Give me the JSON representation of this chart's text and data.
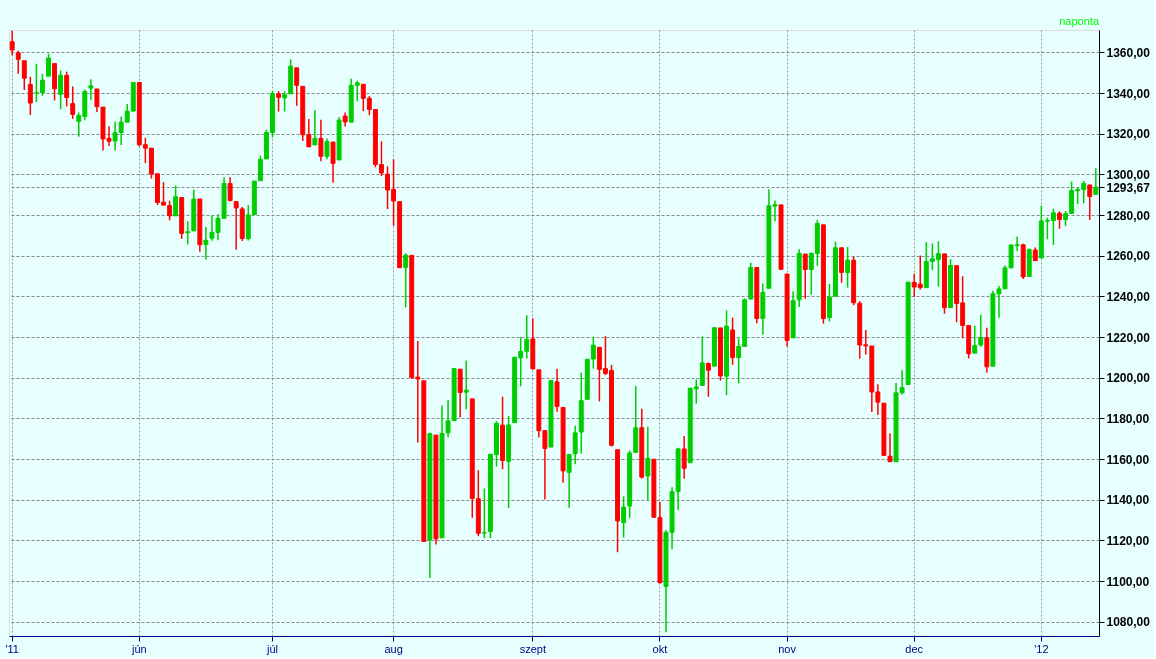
{
  "chart_data": {
    "type": "candlestick",
    "categories": [
      "'11",
      null,
      null,
      null,
      null,
      null,
      null,
      null,
      null,
      null,
      null,
      null,
      null,
      null,
      null,
      null,
      null,
      null,
      null,
      null,
      null,
      "jún",
      null,
      null,
      null,
      null,
      null,
      null,
      null,
      null,
      null,
      null,
      null,
      null,
      null,
      null,
      null,
      null,
      null,
      null,
      null,
      null,
      null,
      "júl",
      null,
      null,
      null,
      null,
      null,
      null,
      null,
      null,
      null,
      null,
      null,
      null,
      null,
      null,
      null,
      null,
      null,
      null,
      null,
      "aug",
      null,
      null,
      null,
      null,
      null,
      null,
      null,
      null,
      null,
      null,
      null,
      null,
      null,
      null,
      null,
      null,
      null,
      null,
      null,
      null,
      null,
      null,
      "szept",
      null,
      null,
      null,
      null,
      null,
      null,
      null,
      null,
      null,
      null,
      null,
      null,
      null,
      null,
      null,
      null,
      null,
      null,
      null,
      null,
      "okt",
      null,
      null,
      null,
      null,
      null,
      null,
      null,
      null,
      null,
      null,
      null,
      null,
      null,
      null,
      null,
      null,
      null,
      null,
      null,
      null,
      "nov",
      null,
      null,
      null,
      null,
      null,
      null,
      null,
      null,
      null,
      null,
      null,
      null,
      null,
      null,
      null,
      null,
      null,
      null,
      null,
      null,
      "dec",
      null,
      null,
      null,
      null,
      null,
      null,
      null,
      null,
      null,
      null,
      null,
      null,
      null,
      null,
      null,
      null,
      null,
      null,
      null,
      null,
      "'12",
      null,
      null,
      null,
      null,
      null,
      null,
      null,
      null,
      null
    ],
    "ohlc": [
      [
        1365.2,
        1370.6,
        1358.6,
        1361.2
      ],
      [
        1359.8,
        1360.8,
        1349.5,
        1356.6
      ],
      [
        1355.9,
        1355.9,
        1341.5,
        1347.3
      ],
      [
        1344.2,
        1348,
        1329.2,
        1335.1
      ],
      [
        1340.2,
        1354.4,
        1335.6,
        1340.2
      ],
      [
        1340.2,
        1349.4,
        1338.6,
        1346.3
      ],
      [
        1348.3,
        1359.4,
        1348.3,
        1357.2
      ],
      [
        1354.5,
        1354.5,
        1336.4,
        1342.1
      ],
      [
        1339.4,
        1351.1,
        1332.0,
        1348.7
      ],
      [
        1348.7,
        1350.5,
        1333.4,
        1337.8
      ],
      [
        1334.8,
        1343.3,
        1327.3,
        1329.5
      ],
      [
        1326.1,
        1330.4,
        1318.5,
        1329.0
      ],
      [
        1328.5,
        1341.8,
        1326.6,
        1340.7
      ],
      [
        1342.4,
        1346.8,
        1336.4,
        1343.6
      ],
      [
        1342.0,
        1342.0,
        1330.7,
        1333.3
      ],
      [
        1333.1,
        1333.1,
        1311.8,
        1317.4
      ],
      [
        1317.7,
        1323.7,
        1313.9,
        1316.3
      ],
      [
        1316.4,
        1325.9,
        1311.8,
        1320.5
      ],
      [
        1320.6,
        1328.5,
        1314.4,
        1325.7
      ],
      [
        1325.7,
        1334.6,
        1325.7,
        1331.1
      ],
      [
        1331.1,
        1345.2,
        1331.1,
        1345.2
      ],
      [
        1345.2,
        1345.2,
        1313.7,
        1314.6
      ],
      [
        1314.6,
        1318.0,
        1305.6,
        1312.9
      ],
      [
        1312.9,
        1312.9,
        1297.9,
        1300.2
      ],
      [
        1300.3,
        1300.3,
        1284.9,
        1286.2
      ],
      [
        1286.3,
        1296.2,
        1284.7,
        1284.9
      ],
      [
        1284.6,
        1287.0,
        1277.4,
        1279.6
      ],
      [
        1279.6,
        1294.5,
        1279.6,
        1289.0
      ],
      [
        1288.6,
        1288.6,
        1268.3,
        1271.0
      ],
      [
        1271.3,
        1277.0,
        1265.6,
        1271.8
      ],
      [
        1272.2,
        1292.5,
        1272.2,
        1287.9
      ],
      [
        1287.9,
        1287.9,
        1261.9,
        1265.4
      ],
      [
        1265.5,
        1274.1,
        1258.1,
        1267.6
      ],
      [
        1268.6,
        1279.8,
        1267.4,
        1271.5
      ],
      [
        1271.5,
        1280.4,
        1267.6,
        1278.4
      ],
      [
        1278.4,
        1298.6,
        1278.4,
        1295.5
      ],
      [
        1295.5,
        1298.6,
        1286.8,
        1287.1
      ],
      [
        1286.6,
        1286.6,
        1262.9,
        1283.5
      ],
      [
        1283.0,
        1283.9,
        1267.2,
        1268.5
      ],
      [
        1268.4,
        1284.9,
        1267.5,
        1280.1
      ],
      [
        1280.2,
        1296.8,
        1280.2,
        1296.7
      ],
      [
        1296.9,
        1309.2,
        1296.9,
        1307.4
      ],
      [
        1307.6,
        1322.0,
        1307.6,
        1320.6
      ],
      [
        1320.6,
        1341.0,
        1318.2,
        1339.7
      ],
      [
        1339.6,
        1340.9,
        1330.9,
        1337.9
      ],
      [
        1337.6,
        1340.9,
        1330.9,
        1339.2
      ],
      [
        1339.6,
        1356.5,
        1339.6,
        1353.2
      ],
      [
        1352.4,
        1352.4,
        1333.7,
        1343.8
      ],
      [
        1343.3,
        1343.3,
        1316.4,
        1319.5
      ],
      [
        1319.6,
        1327.2,
        1313.3,
        1313.6
      ],
      [
        1314.5,
        1331.5,
        1314.5,
        1317.7
      ],
      [
        1317.7,
        1326.9,
        1306.5,
        1308.9
      ],
      [
        1308.9,
        1317.7,
        1307.4,
        1316.1
      ],
      [
        1315.9,
        1315.9,
        1295.9,
        1305.4
      ],
      [
        1307.1,
        1328.1,
        1307.1,
        1326.7
      ],
      [
        1328.7,
        1330.4,
        1323.6,
        1325.8
      ],
      [
        1325.7,
        1347.0,
        1325.7,
        1343.8
      ],
      [
        1343.8,
        1346.1,
        1336.0,
        1345.0
      ],
      [
        1344.3,
        1344.3,
        1331.1,
        1337.4
      ],
      [
        1337.4,
        1338.5,
        1329.1,
        1331.9
      ],
      [
        1331.9,
        1331.9,
        1303.5,
        1304.9
      ],
      [
        1304.8,
        1316.3,
        1299.2,
        1300.7
      ],
      [
        1300.1,
        1304.0,
        1282.9,
        1292.3
      ],
      [
        1292.6,
        1307.4,
        1274.7,
        1286.9
      ],
      [
        1286.6,
        1286.6,
        1254.0,
        1254.1
      ],
      [
        1254.3,
        1261.2,
        1234.6,
        1260.3
      ],
      [
        1260.2,
        1260.2,
        1199.5,
        1200.1
      ],
      [
        1200.3,
        1218.1,
        1168.1,
        1199.4
      ],
      [
        1198.5,
        1198.5,
        1119.3,
        1119.5
      ],
      [
        1120.2,
        1172.9,
        1101.5,
        1172.5
      ],
      [
        1171.8,
        1171.8,
        1118.0,
        1120.8
      ],
      [
        1121.3,
        1186.3,
        1121.3,
        1172.6
      ],
      [
        1172.9,
        1189.0,
        1170.7,
        1178.8
      ],
      [
        1178.9,
        1204.5,
        1178.9,
        1204.5
      ],
      [
        1204.2,
        1204.2,
        1180.5,
        1192.8
      ],
      [
        1192.9,
        1208.5,
        1184.5,
        1193.9
      ],
      [
        1189.6,
        1189.6,
        1131.1,
        1140.7
      ],
      [
        1140.5,
        1154.5,
        1122.1,
        1123.5
      ],
      [
        1123.6,
        1145.5,
        1121.1,
        1123.8
      ],
      [
        1124.4,
        1162.4,
        1121.1,
        1162.4
      ],
      [
        1162.2,
        1178.6,
        1156.3,
        1177.6
      ],
      [
        1176.7,
        1190.7,
        1155.0,
        1159.3
      ],
      [
        1158.9,
        1181.2,
        1135.9,
        1176.8
      ],
      [
        1177.9,
        1210.1,
        1177.9,
        1210.1
      ],
      [
        1209.8,
        1220.1,
        1195.8,
        1212.9
      ],
      [
        1213.0,
        1230.7,
        1209.4,
        1218.9
      ],
      [
        1219.1,
        1229.3,
        1203.9,
        1204.4
      ],
      [
        1203.9,
        1203.9,
        1170.6,
        1174.0
      ],
      [
        1174.0,
        1174.0,
        1140.1,
        1165.2
      ],
      [
        1165.9,
        1198.6,
        1165.9,
        1198.6
      ],
      [
        1198.0,
        1204.4,
        1183.3,
        1185.9
      ],
      [
        1185.4,
        1185.4,
        1148.4,
        1154.2
      ],
      [
        1153.5,
        1162.5,
        1136.1,
        1162.3
      ],
      [
        1162.6,
        1176.4,
        1157.4,
        1172.9
      ],
      [
        1173.3,
        1202.4,
        1162.7,
        1188.7
      ],
      [
        1189.4,
        1209.1,
        1189.4,
        1209.1
      ],
      [
        1209.2,
        1220.1,
        1204.5,
        1216.0
      ],
      [
        1215.0,
        1215.0,
        1188.4,
        1204.1
      ],
      [
        1204.5,
        1220.4,
        1201.3,
        1202.1
      ],
      [
        1203.6,
        1206.3,
        1166.2,
        1166.8
      ],
      [
        1164.6,
        1164.6,
        1114.2,
        1129.6
      ],
      [
        1128.8,
        1141.7,
        1121.4,
        1136.4
      ],
      [
        1136.9,
        1164.2,
        1131.1,
        1163.0
      ],
      [
        1163.3,
        1195.9,
        1163.3,
        1175.4
      ],
      [
        1175.4,
        1184.7,
        1150.4,
        1151.1
      ],
      [
        1151.7,
        1175.9,
        1139.9,
        1160.4
      ],
      [
        1159.9,
        1159.9,
        1131.3,
        1131.4
      ],
      [
        1131.2,
        1139.0,
        1098.9,
        1099.2
      ],
      [
        1097.4,
        1125.1,
        1074.8,
        1124.0
      ],
      [
        1124.0,
        1146.1,
        1115.7,
        1144.0
      ],
      [
        1144.1,
        1165.6,
        1135.0,
        1165.0
      ],
      [
        1165.0,
        1171.4,
        1150.3,
        1155.5
      ],
      [
        1158.2,
        1194.9,
        1158.2,
        1194.9
      ],
      [
        1194.6,
        1199.2,
        1187.3,
        1195.5
      ],
      [
        1196.2,
        1220.3,
        1196.2,
        1207.3
      ],
      [
        1207.0,
        1207.5,
        1190.6,
        1203.7
      ],
      [
        1205.7,
        1224.6,
        1205.7,
        1224.6
      ],
      [
        1224.5,
        1224.5,
        1198.6,
        1200.9
      ],
      [
        1200.8,
        1233.1,
        1191.5,
        1225.4
      ],
      [
        1223.5,
        1229.6,
        1206.3,
        1209.9
      ],
      [
        1209.9,
        1219.4,
        1197.3,
        1215.4
      ],
      [
        1215.4,
        1239.0,
        1215.4,
        1238.3
      ],
      [
        1238.7,
        1256.6,
        1238.7,
        1254.2
      ],
      [
        1254.2,
        1254.2,
        1226.8,
        1229.1
      ],
      [
        1229.2,
        1246.3,
        1221.1,
        1242.0
      ],
      [
        1244.0,
        1292.7,
        1244.0,
        1284.6
      ],
      [
        1284.4,
        1287.1,
        1277.0,
        1285.1
      ],
      [
        1285.0,
        1285.0,
        1253.2,
        1253.3
      ],
      [
        1251.0,
        1251.0,
        1215.4,
        1218.3
      ],
      [
        1219.6,
        1242.5,
        1219.6,
        1237.9
      ],
      [
        1238.3,
        1263.2,
        1234.8,
        1261.2
      ],
      [
        1260.8,
        1260.8,
        1238.9,
        1253.2
      ],
      [
        1253.2,
        1261.7,
        1240.8,
        1261.1
      ],
      [
        1261.1,
        1277.6,
        1255.0,
        1275.9
      ],
      [
        1275.2,
        1275.2,
        1226.6,
        1229.1
      ],
      [
        1229.6,
        1246.2,
        1227.7,
        1239.7
      ],
      [
        1240.1,
        1267.0,
        1240.1,
        1263.9
      ],
      [
        1263.9,
        1263.9,
        1246.7,
        1251.8
      ],
      [
        1251.7,
        1264.3,
        1244.3,
        1257.8
      ],
      [
        1257.8,
        1259.6,
        1235.7,
        1236.9
      ],
      [
        1236.6,
        1237.7,
        1209.4,
        1216.1
      ],
      [
        1216.2,
        1223.5,
        1211.4,
        1215.7
      ],
      [
        1215.6,
        1215.6,
        1183.2,
        1193.0
      ],
      [
        1193.0,
        1196.8,
        1181.7,
        1188.0
      ],
      [
        1187.5,
        1187.5,
        1161.8,
        1161.8
      ],
      [
        1161.4,
        1172.7,
        1158.7,
        1158.7
      ],
      [
        1158.7,
        1197.4,
        1158.7,
        1192.6
      ],
      [
        1192.6,
        1203.7,
        1191.8,
        1195.2
      ],
      [
        1196.7,
        1247.1,
        1196.7,
        1247.0
      ],
      [
        1246.9,
        1251.1,
        1239.7,
        1244.6
      ],
      [
        1246.0,
        1260.1,
        1243.4,
        1244.3
      ],
      [
        1244.3,
        1266.7,
        1244.3,
        1257.1
      ],
      [
        1257.2,
        1266.0,
        1253.0,
        1258.5
      ],
      [
        1258.1,
        1267.1,
        1244.8,
        1261.0
      ],
      [
        1260.9,
        1260.9,
        1231.5,
        1234.4
      ],
      [
        1234.5,
        1258.3,
        1234.5,
        1255.2
      ],
      [
        1255.1,
        1255.1,
        1227.3,
        1236.5
      ],
      [
        1236.8,
        1249.9,
        1219.4,
        1225.7
      ],
      [
        1225.7,
        1225.7,
        1209.5,
        1211.8
      ],
      [
        1212.1,
        1225.6,
        1212.1,
        1215.8
      ],
      [
        1216.1,
        1231.0,
        1215.2,
        1219.7
      ],
      [
        1219.7,
        1224.6,
        1202.4,
        1205.4
      ],
      [
        1205.7,
        1242.8,
        1205.7,
        1241.3
      ],
      [
        1241.3,
        1245.1,
        1229.5,
        1243.7
      ],
      [
        1243.7,
        1255.2,
        1243.7,
        1254.0
      ],
      [
        1254.0,
        1265.4,
        1254.0,
        1265.3
      ],
      [
        1265.0,
        1269.4,
        1262.3,
        1265.4
      ],
      [
        1265.4,
        1265.9,
        1248.6,
        1249.6
      ],
      [
        1249.8,
        1263.5,
        1249.8,
        1263.0
      ],
      [
        1262.8,
        1264.1,
        1257.5,
        1257.6
      ],
      [
        1258.9,
        1284.6,
        1258.9,
        1277.1
      ],
      [
        1277.0,
        1278.7,
        1268.1,
        1277.3
      ],
      [
        1277.3,
        1283.1,
        1265.3,
        1281.1
      ],
      [
        1280.9,
        1281.8,
        1273.3,
        1277.8
      ],
      [
        1277.8,
        1282.0,
        1274.6,
        1280.7
      ],
      [
        1280.8,
        1296.5,
        1280.8,
        1292.1
      ],
      [
        1292.0,
        1293.8,
        1285.4,
        1292.5
      ],
      [
        1292.5,
        1296.8,
        1285.8,
        1295.5
      ],
      [
        1294.8,
        1294.8,
        1277.6,
        1289.1
      ],
      [
        1290.2,
        1303.0,
        1290.2,
        1293.67
      ]
    ],
    "colors": [
      "#ff0000",
      "#ff0000",
      "#ff0000",
      "#ff0000",
      "#00cc00",
      "#00cc00",
      "#00cc00",
      "#ff0000",
      "#00cc00",
      "#ff0000",
      "#ff0000",
      "#00cc00",
      "#00cc00",
      "#00cc00",
      "#ff0000",
      "#ff0000",
      "#ff0000",
      "#00cc00",
      "#00cc00",
      "#00cc00",
      "#00cc00",
      "#ff0000",
      "#ff0000",
      "#ff0000",
      "#ff0000",
      "#ff0000",
      "#ff0000",
      "#00cc00",
      "#ff0000",
      "#00cc00",
      "#00cc00",
      "#ff0000",
      "#00cc00",
      "#00cc00",
      "#00cc00",
      "#00cc00",
      "#ff0000",
      "#ff0000",
      "#ff0000",
      "#00cc00",
      "#00cc00",
      "#00cc00",
      "#00cc00",
      "#00cc00",
      "#ff0000",
      "#00cc00",
      "#00cc00",
      "#ff0000",
      "#ff0000",
      "#ff0000",
      "#00cc00",
      "#ff0000",
      "#00cc00",
      "#ff0000",
      "#00cc00",
      "#ff0000",
      "#00cc00",
      "#00cc00",
      "#ff0000",
      "#ff0000",
      "#ff0000",
      "#ff0000",
      "#ff0000",
      "#ff0000",
      "#ff0000",
      "#00cc00",
      "#ff0000",
      "#ff0000",
      "#ff0000",
      "#00cc00",
      "#ff0000",
      "#00cc00",
      "#00cc00",
      "#00cc00",
      "#ff0000",
      "#00cc00",
      "#ff0000",
      "#ff0000",
      "#00cc00",
      "#00cc00",
      "#00cc00",
      "#ff0000",
      "#00cc00",
      "#00cc00",
      "#00cc00",
      "#00cc00",
      "#ff0000",
      "#ff0000",
      "#ff0000",
      "#00cc00",
      "#ff0000",
      "#ff0000",
      "#00cc00",
      "#00cc00",
      "#00cc00",
      "#00cc00",
      "#00cc00",
      "#ff0000",
      "#ff0000",
      "#ff0000",
      "#ff0000",
      "#00cc00",
      "#00cc00",
      "#00cc00",
      "#ff0000",
      "#00cc00",
      "#ff0000",
      "#ff0000",
      "#00cc00",
      "#00cc00",
      "#00cc00",
      "#ff0000",
      "#00cc00",
      "#00cc00",
      "#00cc00",
      "#ff0000",
      "#00cc00",
      "#ff0000",
      "#00cc00",
      "#ff0000",
      "#00cc00",
      "#00cc00",
      "#00cc00",
      "#ff0000",
      "#00cc00",
      "#00cc00",
      "#00cc00",
      "#ff0000",
      "#ff0000",
      "#00cc00",
      "#00cc00",
      "#ff0000",
      "#00cc00",
      "#00cc00",
      "#ff0000",
      "#00cc00",
      "#00cc00",
      "#ff0000",
      "#00cc00",
      "#ff0000",
      "#ff0000",
      "#ff0000",
      "#ff0000",
      "#ff0000",
      "#ff0000",
      "#ff0000",
      "#00cc00",
      "#00cc00",
      "#00cc00",
      "#ff0000",
      "#ff0000",
      "#00cc00",
      "#00cc00",
      "#00cc00",
      "#ff0000",
      "#00cc00",
      "#ff0000",
      "#ff0000",
      "#ff0000",
      "#00cc00",
      "#00cc00",
      "#ff0000",
      "#00cc00",
      "#00cc00",
      "#00cc00",
      "#00cc00",
      "#00cc00",
      "#ff0000",
      "#00cc00",
      "#ff0000",
      "#00cc00",
      "#00cc00",
      "#00cc00",
      "#ff0000",
      "#00cc00",
      "#00cc00",
      "#00cc00",
      "#00cc00",
      "#ff0000",
      "#00cc00"
    ],
    "ylim": [
      1073,
      1371
    ],
    "yticks": [
      {
        "value": 1080,
        "label": "1080,00"
      },
      {
        "value": 1100,
        "label": "1100,00"
      },
      {
        "value": 1120,
        "label": "1120,00"
      },
      {
        "value": 1140,
        "label": "1140,00"
      },
      {
        "value": 1160,
        "label": "1160,00"
      },
      {
        "value": 1180,
        "label": "1180,00"
      },
      {
        "value": 1200,
        "label": "1200,00"
      },
      {
        "value": 1220,
        "label": "1220,00"
      },
      {
        "value": 1240,
        "label": "1240,00"
      },
      {
        "value": 1260,
        "label": "1260,00"
      },
      {
        "value": 1280,
        "label": "1280,00"
      },
      {
        "value": 1293.67,
        "label": "1293,67"
      },
      {
        "value": 1300,
        "label": "1300,00"
      },
      {
        "value": 1320,
        "label": "1320,00"
      },
      {
        "value": 1340,
        "label": "1340,00"
      },
      {
        "value": 1360,
        "label": "1360,00"
      }
    ],
    "grid": true,
    "annotations": [
      "naponta"
    ]
  }
}
